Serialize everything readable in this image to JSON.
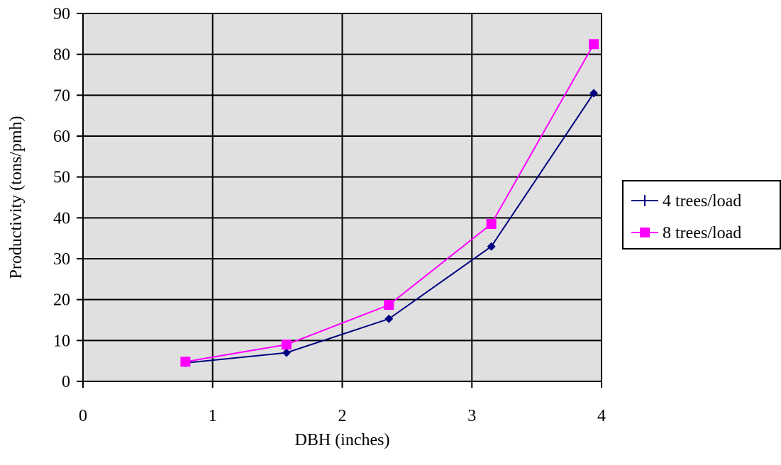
{
  "chart_data": {
    "type": "line",
    "xlabel": "DBH (inches)",
    "ylabel": "Productivity (tons/pmh)",
    "xlim": [
      0,
      4
    ],
    "ylim": [
      0,
      90
    ],
    "xticks": [
      0,
      1,
      2,
      3,
      4
    ],
    "yticks": [
      0,
      10,
      20,
      30,
      40,
      50,
      60,
      70,
      80,
      90
    ],
    "grid": true,
    "plot_background": "#e0e0e0",
    "legend_position": "right",
    "series": [
      {
        "name": "4 trees/load",
        "color": "#000080",
        "marker": "diamond",
        "x": [
          0.79,
          1.57,
          2.36,
          3.15,
          3.94
        ],
        "y": [
          4.5,
          7,
          15.3,
          33,
          70.5
        ]
      },
      {
        "name": "8 trees/load",
        "color": "#ff00ff",
        "marker": "square",
        "x": [
          0.79,
          1.57,
          2.36,
          3.15,
          3.94
        ],
        "y": [
          4.8,
          9,
          18.7,
          38.5,
          82.5
        ]
      }
    ]
  }
}
